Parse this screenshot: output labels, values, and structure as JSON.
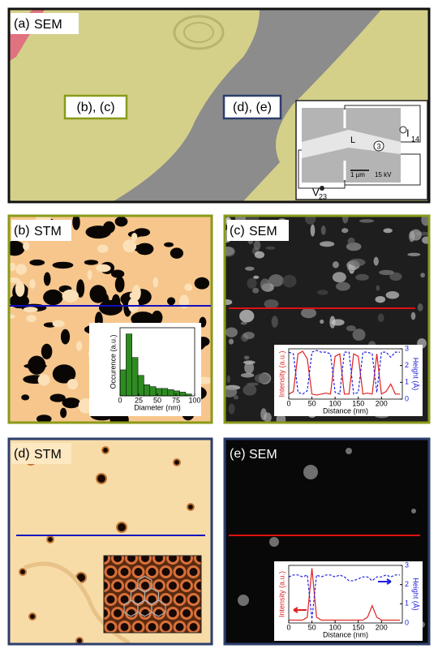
{
  "panels": {
    "a": {
      "label": "(a)",
      "technique": "SEM",
      "region_bc": "(b), (c)",
      "region_de": "(d), (e)",
      "inset": {
        "current": "I",
        "current_sub": "14",
        "voltage": "V",
        "voltage_sub": "23",
        "contact": "3",
        "length": "L",
        "scale_bar": "1 µm",
        "beam": "15 kV"
      }
    },
    "b": {
      "label": "(b)",
      "technique": "STM"
    },
    "c": {
      "label": "(c)",
      "technique": "SEM"
    },
    "d": {
      "label": "(d)",
      "technique": "STM"
    },
    "e": {
      "label": "(e)",
      "technique": "SEM"
    }
  },
  "chart_data": [
    {
      "type": "histogram",
      "x_label": "Diameter (nm)",
      "y_label": "Occurence (a.u.)",
      "color": "#2e8b22",
      "bins": [
        0,
        8,
        16,
        24,
        32,
        40,
        48,
        56,
        64,
        72,
        80,
        88,
        96
      ],
      "values": [
        0.42,
        1.0,
        0.62,
        0.33,
        0.18,
        0.15,
        0.12,
        0.12,
        0.1,
        0.08,
        0.06,
        0.03
      ],
      "xlim": [
        0,
        100
      ],
      "ylim": [
        0,
        1.1
      ],
      "xticks": [
        0,
        25,
        50,
        75,
        100
      ]
    },
    {
      "type": "line",
      "x_label": "Distance (nm)",
      "y_label": "Intensity (a.u.)",
      "y2_label": "Height (Å)",
      "x": [
        0,
        10,
        20,
        30,
        40,
        50,
        60,
        70,
        80,
        90,
        100,
        110,
        120,
        130,
        140,
        150,
        160,
        170,
        180,
        190,
        200,
        210,
        220,
        230,
        240
      ],
      "xlim": [
        0,
        245
      ],
      "ylim": [
        0,
        1
      ],
      "y2lim": [
        0,
        3
      ],
      "xticks": [
        0,
        50,
        100,
        150,
        200
      ],
      "y2ticks": [
        0,
        1,
        2,
        3
      ],
      "series": [
        {
          "color": "#e02020",
          "linestyle": "solid",
          "values": [
            0.1,
            0.15,
            0.9,
            0.95,
            0.8,
            0.1,
            0.08,
            0.1,
            0.12,
            0.1,
            0.85,
            0.9,
            0.1,
            0.1,
            0.9,
            0.85,
            0.1,
            0.12,
            0.1,
            0.9,
            0.1,
            0.15,
            0.3,
            0.1,
            0.1
          ]
        },
        {
          "axis": "y2",
          "color": "#2020e0",
          "linestyle": "dashed",
          "values": [
            2.8,
            2.7,
            0.4,
            0.3,
            0.5,
            2.8,
            2.9,
            2.8,
            2.8,
            2.7,
            0.4,
            0.3,
            2.8,
            2.8,
            0.3,
            0.4,
            2.8,
            2.8,
            2.7,
            0.4,
            2.8,
            2.8,
            2.5,
            2.8,
            2.8
          ]
        }
      ]
    },
    {
      "type": "line",
      "x_label": "Distance (nm)",
      "y_label": "Intensity (a.u.)",
      "y2_label": "Height (Å)",
      "x": [
        0,
        10,
        20,
        30,
        40,
        50,
        60,
        70,
        80,
        90,
        100,
        110,
        120,
        130,
        140,
        150,
        160,
        170,
        180,
        190,
        200,
        210,
        220,
        230,
        240
      ],
      "xlim": [
        0,
        245
      ],
      "ylim": [
        0,
        1
      ],
      "y2lim": [
        0,
        3
      ],
      "xticks": [
        0,
        50,
        100,
        150,
        200
      ],
      "y2ticks": [
        0,
        1,
        2,
        3
      ],
      "series": [
        {
          "color": "#e02020",
          "linestyle": "solid",
          "values": [
            0.05,
            0.05,
            0.05,
            0.05,
            0.1,
            0.95,
            0.1,
            0.05,
            0.05,
            0.05,
            0.05,
            0.05,
            0.05,
            0.05,
            0.05,
            0.05,
            0.05,
            0.1,
            0.3,
            0.1,
            0.05,
            0.05,
            0.05,
            0.05,
            0.05
          ]
        },
        {
          "axis": "y2",
          "color": "#2020e0",
          "linestyle": "dashed",
          "values": [
            2.4,
            2.5,
            2.5,
            2.4,
            2.5,
            0.2,
            2.5,
            2.4,
            2.5,
            2.5,
            2.4,
            2.5,
            2.4,
            2.2,
            2.2,
            2.3,
            2.4,
            2.4,
            2.2,
            2.4,
            2.4,
            2.5,
            2.4,
            2.5,
            2.5
          ]
        }
      ]
    }
  ]
}
